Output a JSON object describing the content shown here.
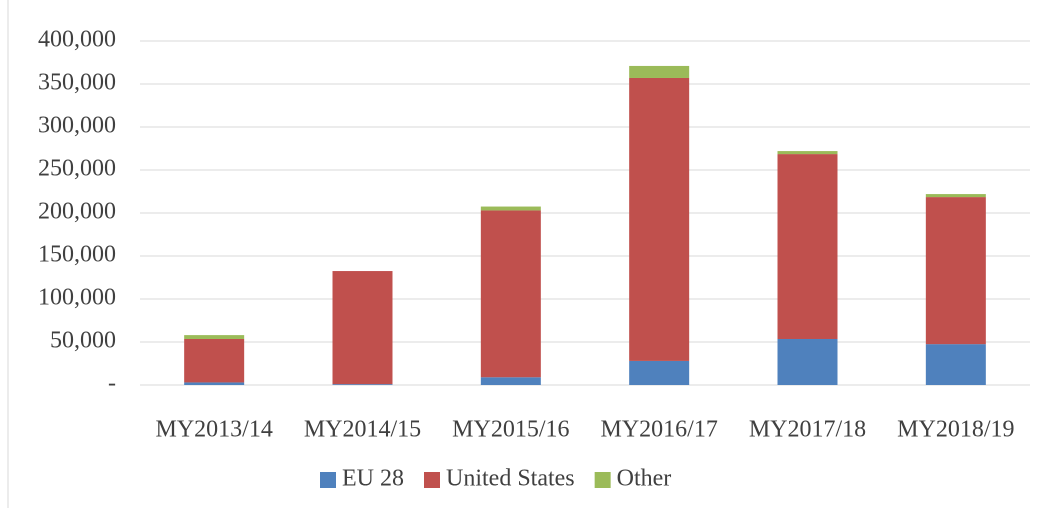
{
  "chart_data": {
    "type": "stacked_bar",
    "categories": [
      "MY2013/14",
      "MY2014/15",
      "MY2015/16",
      "MY2016/17",
      "MY2017/18",
      "MY2018/19"
    ],
    "series": [
      {
        "name": "EU 28",
        "color": "#4f81bd",
        "values": [
          3000,
          1000,
          9000,
          28000,
          53500,
          47500
        ]
      },
      {
        "name": "United States",
        "color": "#c0504d",
        "values": [
          50500,
          131500,
          194000,
          329000,
          215000,
          171000
        ]
      },
      {
        "name": "Other",
        "color": "#9bbb59",
        "values": [
          4500,
          0,
          4500,
          14000,
          3500,
          3500
        ]
      }
    ],
    "ylim": [
      0,
      400000
    ],
    "yticks": [
      {
        "value": 0,
        "label": "-"
      },
      {
        "value": 50000,
        "label": "50,000"
      },
      {
        "value": 100000,
        "label": "100,000"
      },
      {
        "value": 150000,
        "label": "150,000"
      },
      {
        "value": 200000,
        "label": "200,000"
      },
      {
        "value": 250000,
        "label": "250,000"
      },
      {
        "value": 300000,
        "label": "300,000"
      },
      {
        "value": 350000,
        "label": "350,000"
      },
      {
        "value": 400000,
        "label": "400,000"
      }
    ],
    "grid": true,
    "legend": "bottom"
  }
}
